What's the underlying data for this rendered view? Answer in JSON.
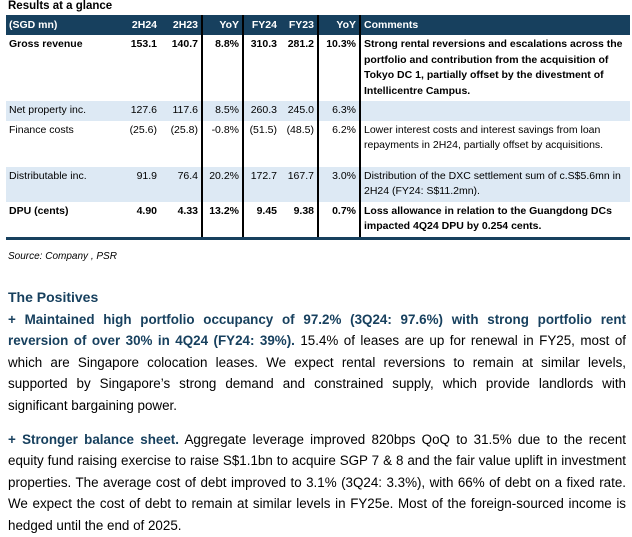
{
  "title": "Results at a glance",
  "headers": [
    "(SGD mn)",
    "2H24",
    "2H23",
    "YoY",
    "FY24",
    "FY23",
    "YoY",
    "Comments"
  ],
  "rows": [
    {
      "label": "Gross revenue",
      "v": [
        "153.1",
        "140.7",
        "8.8%",
        "310.3",
        "281.2",
        "10.3%"
      ],
      "comment": "Strong rental reversions and escalations across the portfolio and contribution from the acquisition of Tokyo DC 1, partially offset by the divestment of Intellicentre Campus."
    },
    {
      "label": "Net property inc.",
      "v": [
        "127.6",
        "117.6",
        "8.5%",
        "260.3",
        "245.0",
        "6.3%"
      ],
      "comment": ""
    },
    {
      "label": "Finance costs",
      "v": [
        "(25.6)",
        "(25.8)",
        "-0.8%",
        "(51.5)",
        "(48.5)",
        "6.2%"
      ],
      "comment": "Lower interest costs and interest savings from loan repayments in 2H24, partially offset by acquisitions."
    },
    {
      "label": "Distributable inc.",
      "v": [
        "91.9",
        "76.4",
        "20.2%",
        "172.7",
        "167.7",
        "3.0%"
      ],
      "comment": "Distribution of the DXC settlement sum of c.S$5.6mn in 2H24 (FY24: S$11.2mn)."
    },
    {
      "label": "DPU (cents)",
      "v": [
        "4.90",
        "4.33",
        "13.2%",
        "9.45",
        "9.38",
        "0.7%"
      ],
      "comment": "Loss allowance in relation to the Guangdong DCs impacted 4Q24 DPU by 0.254 cents."
    }
  ],
  "source": "Source: Company , PSR",
  "section_heading": "The Positives",
  "p1_lead": "+ Maintained high portfolio occupancy of 97.2% (3Q24: 97.6%) with strong portfolio rent reversion of over 30% in 4Q24 (FY24: 39%).",
  "p1_body": " 15.4% of leases are up for renewal in FY25, most of which are Singapore colocation leases. We expect rental reversions to remain at similar levels, supported by Singapore’s strong demand and constrained supply, which provide landlords with significant bargaining power.",
  "p2_lead": "+ Stronger balance sheet.",
  "p2_body": " Aggregate leverage improved 820bps QoQ to 31.5% due to the recent equity fund raising exercise to raise S$1.1bn to acquire SGP 7 & 8 and the fair value uplift in investment properties. The average cost of debt improved to 3.1% (3Q24: 3.3%), with 66% of debt on a fixed rate. We expect the cost of debt to remain at similar levels in FY25e. Most of the foreign-sourced income is hedged until the end of 2025."
}
